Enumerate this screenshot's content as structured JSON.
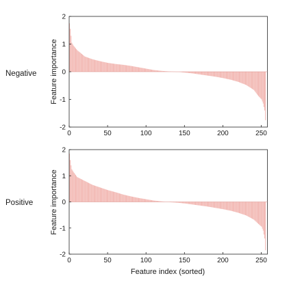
{
  "chart_data": [
    {
      "type": "bar",
      "row_label": "Negative",
      "xlabel": "",
      "ylabel": "Feature importance",
      "xlim": [
        0,
        258
      ],
      "ylim": [
        -2,
        2
      ],
      "xticks": [
        "0",
        "50",
        "100",
        "150",
        "200",
        "250"
      ],
      "yticks": [
        "2",
        "1",
        "0",
        "-1",
        "-2"
      ],
      "n_bars": 256,
      "bar_color": "#f2b8b3",
      "sorted_importance_profile": [
        [
          0,
          1.75
        ],
        [
          1,
          1.55
        ],
        [
          2,
          1.3
        ],
        [
          3,
          1.05
        ],
        [
          5,
          0.95
        ],
        [
          10,
          0.78
        ],
        [
          20,
          0.55
        ],
        [
          30,
          0.45
        ],
        [
          40,
          0.38
        ],
        [
          50,
          0.32
        ],
        [
          60,
          0.28
        ],
        [
          70,
          0.25
        ],
        [
          80,
          0.21
        ],
        [
          90,
          0.16
        ],
        [
          100,
          0.11
        ],
        [
          110,
          0.06
        ],
        [
          120,
          0.03
        ],
        [
          130,
          0.01
        ],
        [
          140,
          0.0
        ],
        [
          150,
          -0.03
        ],
        [
          160,
          -0.06
        ],
        [
          170,
          -0.1
        ],
        [
          180,
          -0.14
        ],
        [
          190,
          -0.18
        ],
        [
          200,
          -0.23
        ],
        [
          210,
          -0.29
        ],
        [
          220,
          -0.37
        ],
        [
          230,
          -0.48
        ],
        [
          240,
          -0.66
        ],
        [
          245,
          -0.85
        ],
        [
          250,
          -1.0
        ],
        [
          252,
          -1.15
        ],
        [
          254,
          -1.4
        ],
        [
          255,
          -1.75
        ]
      ]
    },
    {
      "type": "bar",
      "row_label": "Positive",
      "xlabel": "Feature index (sorted)",
      "ylabel": "Feature importance",
      "xlim": [
        0,
        258
      ],
      "ylim": [
        -2,
        2
      ],
      "xticks": [
        "0",
        "50",
        "100",
        "150",
        "200",
        "250"
      ],
      "yticks": [
        "2",
        "1",
        "0",
        "-1",
        "-2"
      ],
      "n_bars": 256,
      "bar_color": "#f2b8b3",
      "sorted_importance_profile": [
        [
          0,
          1.85
        ],
        [
          1,
          1.6
        ],
        [
          2,
          1.4
        ],
        [
          3,
          1.25
        ],
        [
          5,
          1.15
        ],
        [
          10,
          0.95
        ],
        [
          20,
          0.8
        ],
        [
          30,
          0.65
        ],
        [
          40,
          0.55
        ],
        [
          50,
          0.45
        ],
        [
          60,
          0.37
        ],
        [
          70,
          0.28
        ],
        [
          80,
          0.21
        ],
        [
          90,
          0.15
        ],
        [
          100,
          0.1
        ],
        [
          110,
          0.05
        ],
        [
          120,
          0.02
        ],
        [
          130,
          -0.01
        ],
        [
          140,
          -0.03
        ],
        [
          150,
          -0.06
        ],
        [
          160,
          -0.1
        ],
        [
          170,
          -0.14
        ],
        [
          180,
          -0.18
        ],
        [
          190,
          -0.23
        ],
        [
          200,
          -0.28
        ],
        [
          210,
          -0.34
        ],
        [
          220,
          -0.42
        ],
        [
          230,
          -0.52
        ],
        [
          240,
          -0.68
        ],
        [
          245,
          -0.82
        ],
        [
          250,
          -0.95
        ],
        [
          252,
          -1.1
        ],
        [
          254,
          -1.4
        ],
        [
          255,
          -1.85
        ]
      ]
    }
  ]
}
